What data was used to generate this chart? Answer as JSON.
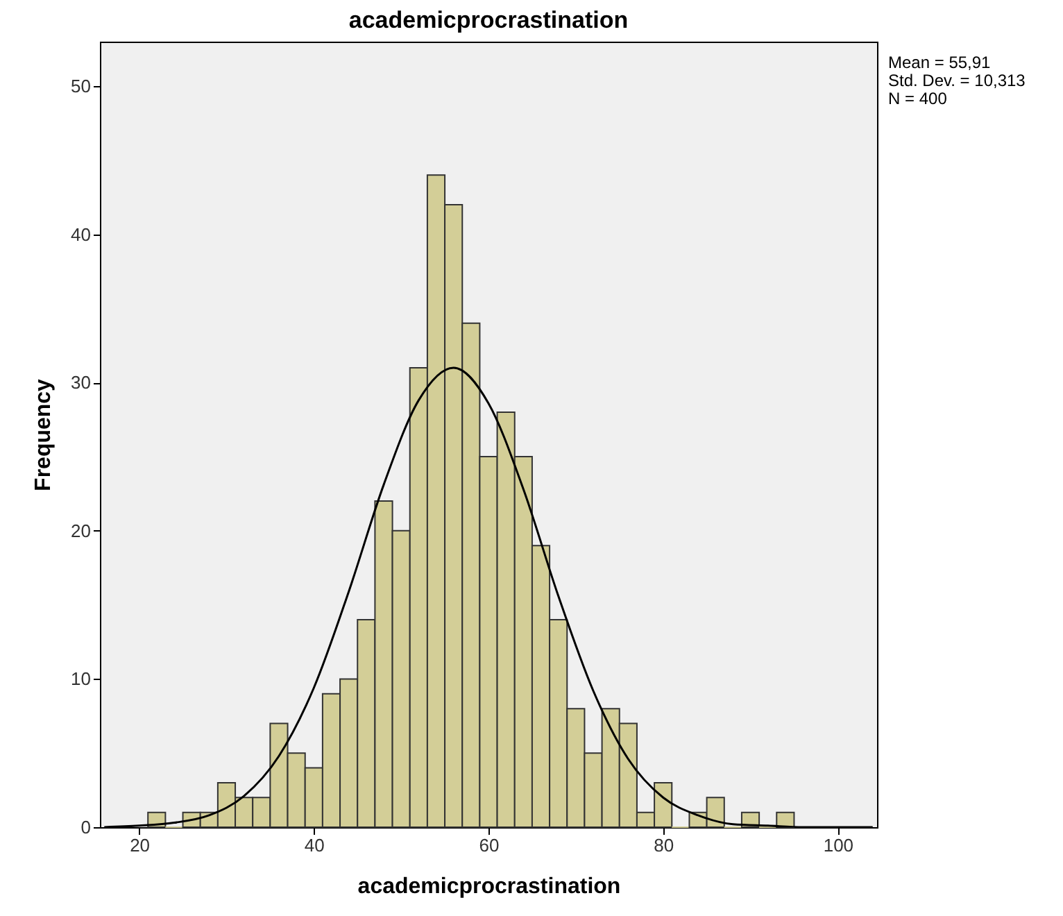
{
  "chart_data": {
    "type": "histogram",
    "title": "academicprocrastination",
    "xlabel": "academicprocrastination",
    "ylabel": "Frequency",
    "bins": [
      21,
      23,
      25,
      27,
      29,
      31,
      33,
      35,
      37,
      39,
      41,
      43,
      45,
      47,
      49,
      51,
      53,
      55,
      57,
      59,
      61,
      63,
      65,
      67,
      69,
      71,
      73,
      75,
      77,
      79,
      81,
      83,
      85,
      87,
      89,
      91,
      93,
      95
    ],
    "values": [
      1,
      0,
      1,
      1,
      3,
      2,
      2,
      7,
      5,
      4,
      9,
      10,
      14,
      22,
      20,
      31,
      44,
      42,
      34,
      25,
      28,
      25,
      19,
      14,
      8,
      5,
      8,
      7,
      1,
      3,
      0,
      1,
      2,
      0,
      1,
      0,
      1
    ],
    "color": "#d3ce97",
    "series": [
      {
        "type": "line",
        "color": "#000000",
        "x": [
          16,
          20,
          24,
          28,
          32,
          36,
          40,
          44,
          48,
          52,
          56,
          60,
          64,
          68,
          72,
          76,
          80,
          84,
          88,
          92,
          96,
          100,
          104
        ],
        "values": [
          0,
          0.1,
          0.3,
          0.8,
          2.1,
          4.8,
          9.4,
          15.9,
          23.1,
          28.8,
          31,
          28.6,
          22.8,
          15.6,
          9.2,
          4.6,
          2,
          0.8,
          0.2,
          0.1,
          0,
          0,
          0
        ]
      }
    ],
    "xlim": [
      15.5,
      104.5
    ],
    "ylim": [
      0,
      53
    ],
    "xticks": [
      20,
      40,
      60,
      80,
      100
    ],
    "yticks": [
      0,
      10,
      20,
      30,
      40,
      50
    ],
    "grid": false,
    "annotations": [
      "Mean = 55,91",
      "Std. Dev. = 10,313",
      "N = 400"
    ]
  }
}
